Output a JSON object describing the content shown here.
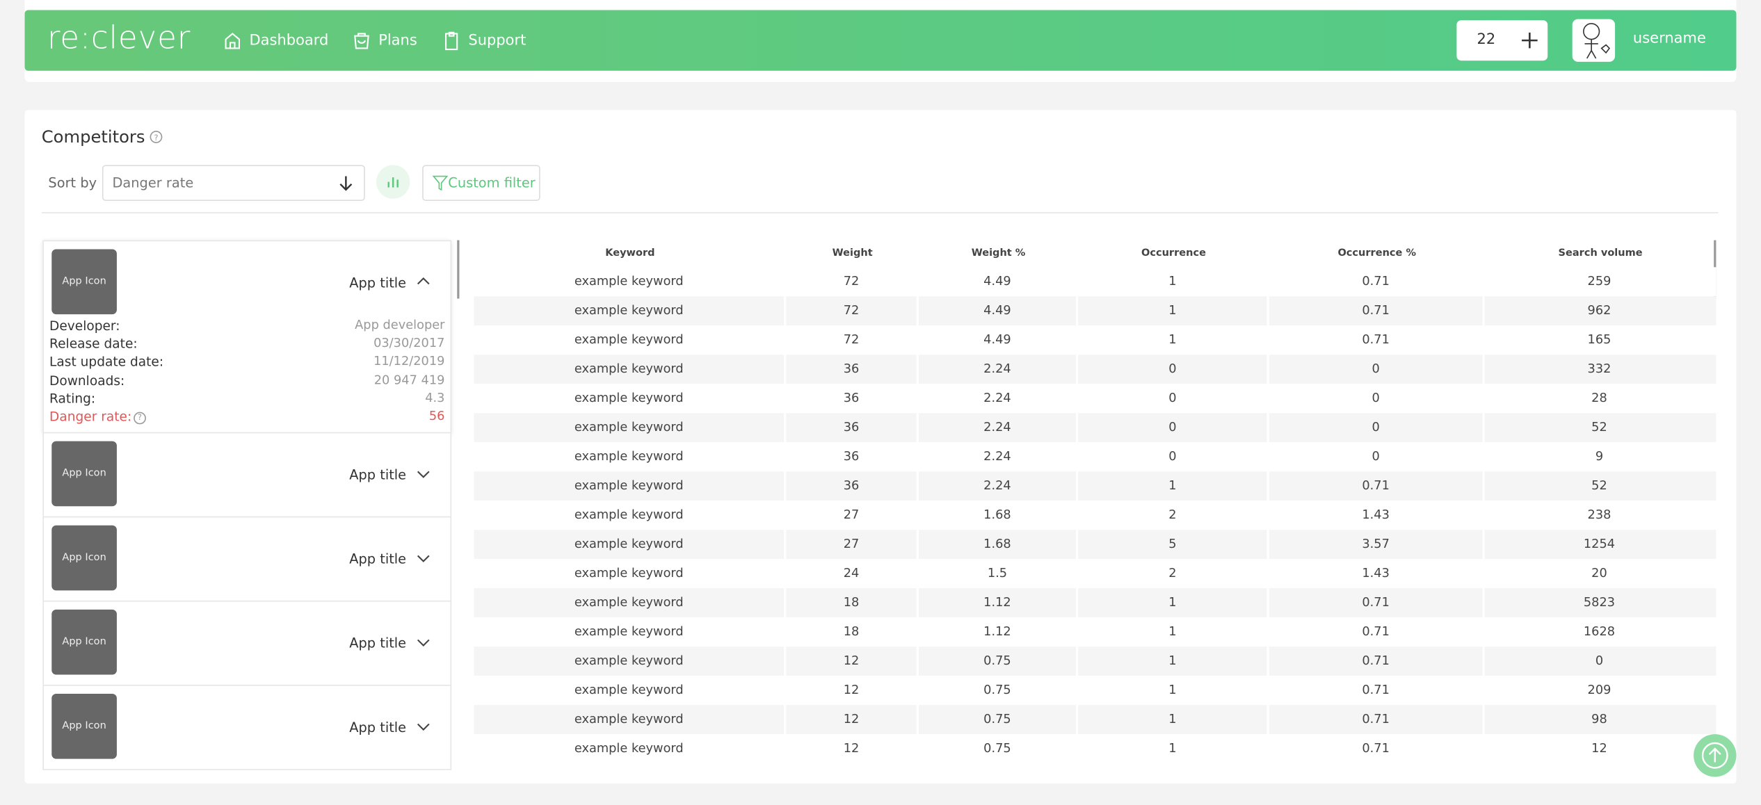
{
  "header": {
    "logo": "re:clever",
    "nav": [
      "Dashboard",
      "Plans",
      "Support"
    ],
    "credits": "22",
    "username": "username"
  },
  "competitors": {
    "title": "Competitors",
    "sort_label": "Sort by",
    "sort_value": "Danger rate",
    "custom_filter": "Custom filter",
    "apps": [
      {
        "icon": "App Icon",
        "title": "App title",
        "details": [
          [
            "Developer:",
            "App developer"
          ],
          [
            "Release date:",
            "03/30/2017"
          ],
          [
            "Last update date:",
            "11/12/2019"
          ],
          [
            "Downloads:",
            "20 947 419"
          ],
          [
            "Rating:",
            "4.3"
          ]
        ],
        "danger_label": "Danger rate:",
        "danger_value": "56"
      },
      {
        "icon": "App Icon",
        "title": "App title"
      },
      {
        "icon": "App Icon",
        "title": "App title"
      },
      {
        "icon": "App Icon",
        "title": "App title"
      },
      {
        "icon": "App Icon",
        "title": "App title"
      }
    ],
    "table": {
      "columns": [
        "Keyword",
        "Weight",
        "Weight %",
        "Occurrence",
        "Occurrence %",
        "Search volume"
      ],
      "rows": [
        [
          "example keyword",
          72,
          4.49,
          1,
          0.71,
          259
        ],
        [
          "example keyword",
          72,
          4.49,
          1,
          0.71,
          962
        ],
        [
          "example keyword",
          72,
          4.49,
          1,
          0.71,
          165
        ],
        [
          "example keyword",
          36,
          2.24,
          0,
          0,
          332
        ],
        [
          "example keyword",
          36,
          2.24,
          0,
          0,
          28
        ],
        [
          "example keyword",
          36,
          2.24,
          0,
          0,
          52
        ],
        [
          "example keyword",
          36,
          2.24,
          0,
          0,
          9
        ],
        [
          "example keyword",
          36,
          2.24,
          1,
          0.71,
          52
        ],
        [
          "example keyword",
          27,
          1.68,
          2,
          1.43,
          238
        ],
        [
          "example keyword",
          27,
          1.68,
          5,
          3.57,
          1254
        ],
        [
          "example keyword",
          24,
          1.5,
          2,
          1.43,
          20
        ],
        [
          "example keyword",
          18,
          1.12,
          1,
          0.71,
          5823
        ],
        [
          "example keyword",
          18,
          1.12,
          1,
          0.71,
          1628
        ],
        [
          "example keyword",
          12,
          0.75,
          1,
          0.71,
          0
        ],
        [
          "example keyword",
          12,
          0.75,
          1,
          0.71,
          209
        ],
        [
          "example keyword",
          12,
          0.75,
          1,
          0.71,
          98
        ],
        [
          "example keyword",
          12,
          0.75,
          1,
          0.71,
          12
        ]
      ]
    }
  }
}
